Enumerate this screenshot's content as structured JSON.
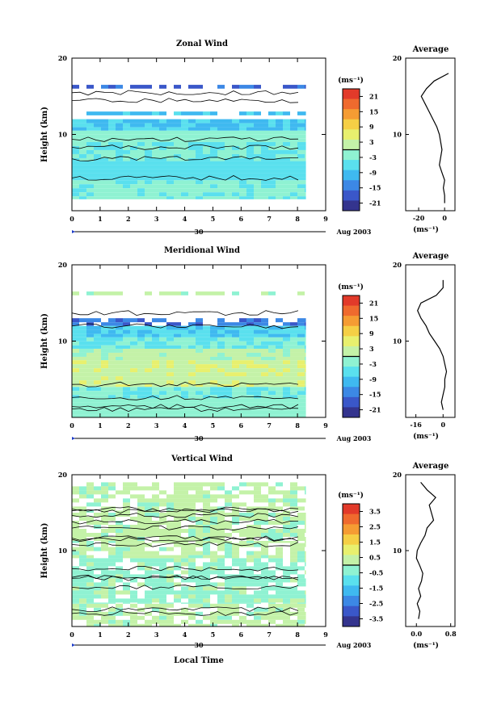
{
  "colors": [
    "#34348e",
    "#3a57c9",
    "#3c88e5",
    "#3fb9f0",
    "#5ae0ee",
    "#8ff2d2",
    "#c4f2a8",
    "#e8f06e",
    "#f5cf45",
    "#f59c33",
    "#ef6a2e",
    "#e23a2a"
  ],
  "chart_data": [
    {
      "type": "heatmap",
      "title": "Zonal Wind",
      "ylabel": "Height (km)",
      "xlim": [
        0,
        9
      ],
      "ylim": [
        0,
        20
      ],
      "xticks": [
        "0",
        "1",
        "2",
        "3",
        "4",
        "5",
        "6",
        "7",
        "8",
        "9"
      ],
      "yticks": [
        "10",
        "20"
      ],
      "date_axis": {
        "tick": "30",
        "label": "Aug 2003"
      },
      "colorbar": {
        "unit": "(ms⁻¹)",
        "ticks": [
          "21",
          "15",
          "9",
          "3",
          "-3",
          "-9",
          "-15",
          "-21"
        ],
        "range": [
          -24,
          24
        ]
      },
      "data_xmax": 8.3,
      "bands": [
        {
          "y": [
            1.5,
            4
          ],
          "v": -3
        },
        {
          "y": [
            4,
            6.5
          ],
          "v": -6
        },
        {
          "y": [
            6.5,
            9
          ],
          "v": -4
        },
        {
          "y": [
            9,
            10.5
          ],
          "v": -2
        },
        {
          "y": [
            10.5,
            12
          ],
          "v": -8
        },
        {
          "y": [
            12.5,
            13
          ],
          "v": -9
        },
        {
          "y": [
            16,
            16.5
          ],
          "v": -17
        }
      ],
      "average": {
        "xlim": [
          -30,
          8
        ],
        "xticks": [
          "-20",
          "0"
        ],
        "xlabel": "(ms⁻¹)",
        "title": "Average",
        "y": [
          1,
          2,
          3,
          4,
          5,
          6,
          7,
          8,
          9,
          10,
          11,
          12,
          13,
          14,
          15,
          16,
          17,
          18
        ],
        "x": [
          0,
          0,
          -1,
          0,
          -2,
          -4,
          -3,
          -2,
          -3,
          -4,
          -6,
          -9,
          -12,
          -15,
          -18,
          -14,
          -8,
          3
        ]
      }
    },
    {
      "type": "heatmap",
      "title": "Meridional Wind",
      "ylabel": "Height (km)",
      "xlim": [
        0,
        9
      ],
      "ylim": [
        0,
        20
      ],
      "xticks": [
        "0",
        "1",
        "2",
        "3",
        "4",
        "5",
        "6",
        "7",
        "8",
        "9"
      ],
      "yticks": [
        "10",
        "20"
      ],
      "date_axis": {
        "tick": "30",
        "label": "Aug 2003"
      },
      "colorbar": {
        "unit": "(ms⁻¹)",
        "ticks": [
          "21",
          "15",
          "9",
          "3",
          "-3",
          "-9",
          "-15",
          "-21"
        ],
        "range": [
          -24,
          24
        ]
      },
      "data_xmax": 8.3,
      "bands": [
        {
          "y": [
            0,
            2.5
          ],
          "v": -2
        },
        {
          "y": [
            2.5,
            4
          ],
          "v": -4
        },
        {
          "y": [
            4,
            7.5
          ],
          "v": 3
        },
        {
          "y": [
            7.5,
            9
          ],
          "v": 1
        },
        {
          "y": [
            9,
            10.5
          ],
          "v": -4
        },
        {
          "y": [
            10.5,
            12
          ],
          "v": -8
        },
        {
          "y": [
            12,
            13
          ],
          "v": -15
        },
        {
          "y": [
            16,
            16.5
          ],
          "v": 1
        }
      ],
      "average": {
        "xlim": [
          -22,
          7
        ],
        "xticks": [
          "-16",
          "0"
        ],
        "xlabel": "(ms⁻¹)",
        "title": "Average",
        "y": [
          1,
          2,
          3,
          4,
          5,
          6,
          7,
          8,
          9,
          10,
          11,
          12,
          13,
          14,
          15,
          16,
          17,
          18
        ],
        "x": [
          0,
          -1,
          0,
          1,
          1,
          2,
          1,
          0,
          -2,
          -5,
          -8,
          -10,
          -13,
          -15,
          -13,
          -4,
          0,
          0
        ]
      }
    },
    {
      "type": "heatmap",
      "title": "Vertical Wind",
      "ylabel": "Height (km)",
      "xlabel": "Local Time",
      "xlim": [
        0,
        9
      ],
      "ylim": [
        0,
        20
      ],
      "xticks": [
        "0",
        "1",
        "2",
        "3",
        "4",
        "5",
        "6",
        "7",
        "8",
        "9"
      ],
      "yticks": [
        "10",
        "20"
      ],
      "date_axis": {
        "tick": "30",
        "label": "Aug 2003"
      },
      "colorbar": {
        "unit": "(ms⁻¹)",
        "ticks": [
          "3.5",
          "2.5",
          "1.5",
          "0.5",
          "-0.5",
          "-1.5",
          "-2.5",
          "-3.5"
        ],
        "range": [
          -4,
          4
        ]
      },
      "data_xmax": 8.3,
      "bands": [
        {
          "y": [
            0,
            3
          ],
          "v": 0.2
        },
        {
          "y": [
            3,
            9
          ],
          "v": -0.2
        },
        {
          "y": [
            9,
            11
          ],
          "v": 0.2
        },
        {
          "y": [
            11,
            15
          ],
          "v": 0.2
        },
        {
          "y": [
            15,
            19
          ],
          "v": 0.2
        }
      ],
      "average": {
        "xlim": [
          -0.25,
          0.9
        ],
        "xticks": [
          "0.0",
          "0.8"
        ],
        "xlabel": "(ms⁻¹)",
        "title": "Average",
        "y": [
          1,
          2,
          3,
          4,
          5,
          6,
          7,
          8,
          9,
          10,
          11,
          12,
          13,
          14,
          15,
          16,
          17,
          18,
          19
        ],
        "x": [
          0.05,
          0.08,
          0.02,
          0.1,
          0.05,
          0.12,
          0.15,
          0.08,
          0.0,
          0.02,
          0.1,
          0.2,
          0.25,
          0.4,
          0.35,
          0.3,
          0.45,
          0.25,
          0.1
        ]
      }
    }
  ]
}
